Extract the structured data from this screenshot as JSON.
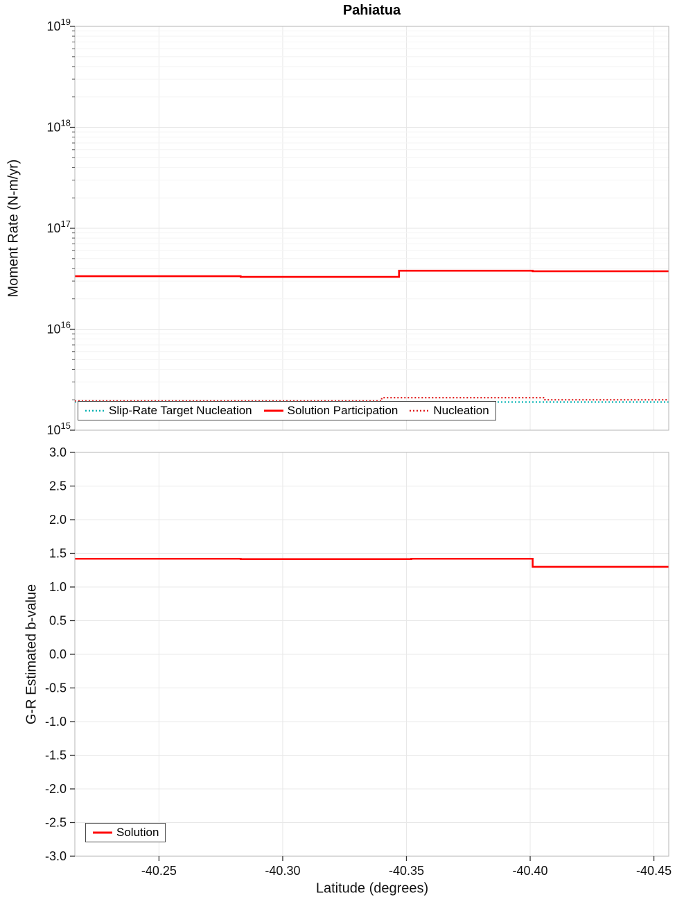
{
  "title": "Pahiatua",
  "chart_data": [
    {
      "type": "line",
      "name": "moment-rate",
      "ylabel": "Moment Rate (N-m/yr)",
      "yscale": "log",
      "ylim": [
        1000000000000000.0,
        1e+19
      ],
      "ytick_exponents": [
        19,
        18,
        17,
        16,
        15
      ],
      "grid": true,
      "legend_position": "bottom-left-inside",
      "series": [
        {
          "name": "Slip-Rate Target Nucleation",
          "color": "#00b2b2",
          "style": "dotted",
          "x": [
            -40.216,
            -40.456
          ],
          "y": [
            1900000000000000.0,
            1900000000000000.0
          ]
        },
        {
          "name": "Solution Participation",
          "color": "#ff0000",
          "style": "solid",
          "x": [
            -40.216,
            -40.283,
            -40.283,
            -40.347,
            -40.347,
            -40.401,
            -40.401,
            -40.456
          ],
          "y": [
            3.35e+16,
            3.35e+16,
            3.3e+16,
            3.3e+16,
            3.8e+16,
            3.8e+16,
            3.75e+16,
            3.75e+16
          ]
        },
        {
          "name": "Nucleation",
          "color": "#e02020",
          "style": "dotted",
          "x": [
            -40.216,
            -40.34,
            -40.34,
            -40.406,
            -40.406,
            -40.456
          ],
          "y": [
            1950000000000000.0,
            1950000000000000.0,
            2100000000000000.0,
            2100000000000000.0,
            2000000000000000.0,
            2000000000000000.0
          ]
        }
      ]
    },
    {
      "type": "line",
      "name": "b-value",
      "ylabel": "G-R Estimated b-value",
      "xlabel": "Latitude (degrees)",
      "yscale": "linear",
      "ylim": [
        -3.0,
        3.0
      ],
      "yticks": [
        3.0,
        2.5,
        2.0,
        1.5,
        1.0,
        0.5,
        0.0,
        -0.5,
        -1.0,
        -1.5,
        -2.0,
        -2.5,
        -3.0
      ],
      "grid": true,
      "legend_position": "bottom-left-inside",
      "series": [
        {
          "name": "Solution",
          "color": "#ff0000",
          "style": "solid",
          "x": [
            -40.216,
            -40.283,
            -40.283,
            -40.352,
            -40.352,
            -40.401,
            -40.401,
            -40.456
          ],
          "y": [
            1.42,
            1.42,
            1.415,
            1.415,
            1.42,
            1.42,
            1.3,
            1.3
          ]
        }
      ]
    }
  ],
  "xaxis": {
    "ticks": [
      "-40.25",
      "-40.30",
      "-40.35",
      "-40.40",
      "-40.45"
    ],
    "tick_values": [
      -40.25,
      -40.3,
      -40.35,
      -40.4,
      -40.45
    ],
    "range": [
      -40.216,
      -40.456
    ],
    "reversed": true
  }
}
